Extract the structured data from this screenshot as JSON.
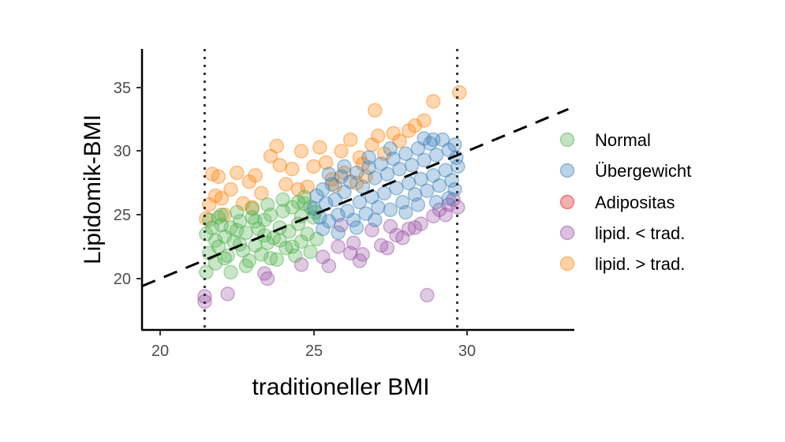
{
  "chart_data": {
    "type": "scatter",
    "title": "",
    "xlabel": "traditioneller BMI",
    "ylabel": "Lipidomik-BMI",
    "xlim": [
      19.41,
      33.5
    ],
    "ylim": [
      15.96,
      38.07
    ],
    "xticks": [
      20,
      25,
      30
    ],
    "yticks": [
      20,
      25,
      30,
      35
    ],
    "grid": false,
    "legend_position": "right",
    "reference_lines": {
      "identity_dashed": {
        "slope": 1,
        "intercept": 0,
        "style": "dashed"
      },
      "vertical_dotted": [
        21.45,
        29.68
      ]
    },
    "legend": [
      {
        "label": "Normal",
        "color": "#4daf4a"
      },
      {
        "label": "Übergewicht",
        "color": "#377eb8"
      },
      {
        "label": "Adipositas",
        "color": "#e41a1c"
      },
      {
        "label": "lipid. < trad.",
        "color": "#984ea3"
      },
      {
        "label": "lipid. > trad.",
        "color": "#ff7f00"
      }
    ],
    "series": [
      {
        "name": "Normal",
        "color": "#4daf4a",
        "points": [
          [
            21.5,
            23.5
          ],
          [
            21.6,
            22.0
          ],
          [
            21.5,
            20.5
          ],
          [
            21.7,
            24.0
          ],
          [
            21.8,
            23.0
          ],
          [
            21.9,
            22.5
          ],
          [
            22.0,
            24.2
          ],
          [
            22.1,
            23.3
          ],
          [
            22.2,
            21.8
          ],
          [
            22.3,
            20.5
          ],
          [
            22.4,
            22.9
          ],
          [
            22.5,
            23.8
          ],
          [
            22.6,
            24.5
          ],
          [
            22.7,
            22.2
          ],
          [
            22.8,
            23.6
          ],
          [
            22.9,
            21.4
          ],
          [
            23.0,
            24.8
          ],
          [
            23.1,
            22.6
          ],
          [
            23.2,
            23.9
          ],
          [
            23.3,
            21.9
          ],
          [
            23.4,
            24.6
          ],
          [
            23.5,
            22.8
          ],
          [
            23.6,
            25.0
          ],
          [
            23.7,
            23.2
          ],
          [
            23.8,
            21.5
          ],
          [
            23.9,
            24.0
          ],
          [
            24.0,
            25.3
          ],
          [
            24.1,
            22.4
          ],
          [
            24.2,
            23.7
          ],
          [
            24.3,
            25.6
          ],
          [
            24.4,
            21.8
          ],
          [
            24.5,
            24.3
          ],
          [
            24.6,
            22.9
          ],
          [
            24.7,
            25.9
          ],
          [
            24.8,
            23.5
          ],
          [
            24.9,
            22.1
          ],
          [
            25.0,
            24.8
          ],
          [
            25.1,
            23.1
          ],
          [
            24.5,
            26.0
          ],
          [
            24.0,
            26.2
          ],
          [
            23.5,
            25.8
          ],
          [
            23.0,
            25.5
          ],
          [
            22.5,
            25.2
          ],
          [
            22.0,
            25.0
          ],
          [
            21.6,
            24.6
          ],
          [
            22.3,
            24.0
          ],
          [
            23.1,
            24.5
          ],
          [
            23.9,
            23.0
          ],
          [
            24.6,
            24.9
          ],
          [
            24.9,
            25.6
          ],
          [
            22.8,
            21.0
          ],
          [
            23.6,
            21.6
          ],
          [
            24.3,
            22.5
          ],
          [
            21.8,
            21.2
          ],
          [
            22.1,
            21.6
          ],
          [
            24.7,
            26.4
          ],
          [
            25.05,
            25.2
          ],
          [
            23.4,
            23.4
          ],
          [
            22.6,
            22.7
          ],
          [
            21.9,
            24.8
          ]
        ]
      },
      {
        "name": "Übergewicht",
        "color": "#377eb8",
        "points": [
          [
            25.0,
            25.5
          ],
          [
            25.1,
            26.5
          ],
          [
            25.2,
            24.8
          ],
          [
            25.3,
            27.0
          ],
          [
            25.4,
            25.9
          ],
          [
            25.5,
            24.5
          ],
          [
            25.6,
            27.4
          ],
          [
            25.7,
            26.2
          ],
          [
            25.8,
            25.0
          ],
          [
            25.9,
            28.0
          ],
          [
            26.0,
            26.8
          ],
          [
            26.1,
            25.3
          ],
          [
            26.2,
            27.6
          ],
          [
            26.3,
            24.6
          ],
          [
            26.4,
            28.3
          ],
          [
            26.5,
            26.0
          ],
          [
            26.6,
            27.2
          ],
          [
            26.7,
            25.1
          ],
          [
            26.8,
            28.7
          ],
          [
            26.9,
            26.4
          ],
          [
            27.0,
            27.9
          ],
          [
            27.1,
            25.6
          ],
          [
            27.2,
            29.0
          ],
          [
            27.3,
            26.7
          ],
          [
            27.4,
            28.2
          ],
          [
            27.5,
            25.4
          ],
          [
            27.6,
            29.4
          ],
          [
            27.7,
            27.1
          ],
          [
            27.8,
            28.6
          ],
          [
            27.9,
            26.0
          ],
          [
            28.0,
            29.8
          ],
          [
            28.1,
            27.5
          ],
          [
            28.2,
            28.9
          ],
          [
            28.3,
            26.6
          ],
          [
            28.4,
            30.2
          ],
          [
            28.5,
            27.8
          ],
          [
            28.6,
            29.3
          ],
          [
            28.7,
            26.9
          ],
          [
            28.8,
            30.6
          ],
          [
            28.9,
            28.1
          ],
          [
            29.0,
            29.7
          ],
          [
            29.1,
            27.3
          ],
          [
            29.2,
            30.9
          ],
          [
            29.3,
            28.5
          ],
          [
            29.4,
            30.1
          ],
          [
            29.5,
            27.7
          ],
          [
            29.6,
            30.5
          ],
          [
            29.7,
            28.8
          ],
          [
            29.65,
            29.5
          ],
          [
            29.6,
            27.0
          ],
          [
            28.6,
            31.0
          ],
          [
            28.9,
            30.9
          ],
          [
            27.5,
            30.2
          ],
          [
            26.8,
            29.5
          ],
          [
            26.0,
            28.8
          ],
          [
            25.5,
            28.2
          ],
          [
            27.0,
            24.6
          ],
          [
            28.0,
            25.2
          ],
          [
            29.0,
            26.0
          ],
          [
            26.4,
            24.0
          ],
          [
            25.3,
            23.9
          ],
          [
            25.8,
            23.6
          ],
          [
            29.4,
            26.3
          ],
          [
            28.4,
            25.8
          ]
        ]
      },
      {
        "name": "lipid. < trad.",
        "color": "#984ea3",
        "points": [
          [
            21.45,
            18.2
          ],
          [
            21.45,
            18.6
          ],
          [
            22.2,
            18.8
          ],
          [
            23.5,
            20.0
          ],
          [
            23.4,
            20.4
          ],
          [
            24.6,
            21.1
          ],
          [
            25.3,
            21.7
          ],
          [
            25.5,
            21.0
          ],
          [
            25.8,
            22.5
          ],
          [
            26.2,
            22.0
          ],
          [
            26.6,
            21.9
          ],
          [
            26.5,
            21.4
          ],
          [
            27.2,
            22.6
          ],
          [
            27.4,
            22.4
          ],
          [
            27.7,
            23.4
          ],
          [
            27.9,
            23.2
          ],
          [
            28.3,
            24.0
          ],
          [
            28.5,
            24.3
          ],
          [
            28.9,
            24.9
          ],
          [
            29.1,
            25.4
          ],
          [
            29.4,
            25.8
          ],
          [
            29.55,
            26.2
          ],
          [
            29.7,
            25.6
          ],
          [
            28.7,
            18.7
          ],
          [
            26.9,
            23.8
          ],
          [
            28.1,
            23.9
          ],
          [
            25.9,
            24.2
          ],
          [
            27.5,
            24.1
          ],
          [
            29.3,
            25.0
          ],
          [
            26.3,
            22.8
          ]
        ]
      },
      {
        "name": "lipid. > trad.",
        "color": "#ff7f00",
        "points": [
          [
            21.5,
            24.7
          ],
          [
            21.6,
            25.8
          ],
          [
            21.7,
            28.2
          ],
          [
            21.9,
            28.0
          ],
          [
            22.0,
            26.3
          ],
          [
            22.3,
            27.0
          ],
          [
            22.5,
            28.3
          ],
          [
            22.7,
            25.9
          ],
          [
            22.9,
            27.6
          ],
          [
            23.1,
            28.1
          ],
          [
            23.3,
            26.7
          ],
          [
            23.6,
            29.6
          ],
          [
            23.8,
            30.4
          ],
          [
            23.9,
            28.9
          ],
          [
            24.1,
            27.4
          ],
          [
            24.3,
            28.6
          ],
          [
            24.6,
            30.0
          ],
          [
            24.8,
            27.2
          ],
          [
            25.0,
            28.8
          ],
          [
            25.2,
            30.3
          ],
          [
            25.4,
            29.1
          ],
          [
            25.7,
            27.3
          ],
          [
            25.9,
            30.0
          ],
          [
            26.0,
            28.3
          ],
          [
            26.2,
            30.9
          ],
          [
            26.4,
            27.5
          ],
          [
            26.5,
            29.5
          ],
          [
            26.7,
            28.0
          ],
          [
            26.9,
            30.5
          ],
          [
            27.1,
            31.2
          ],
          [
            27.3,
            29.8
          ],
          [
            27.6,
            31.4
          ],
          [
            27.8,
            30.8
          ],
          [
            28.1,
            31.6
          ],
          [
            28.3,
            32.0
          ],
          [
            28.6,
            32.4
          ],
          [
            28.9,
            33.9
          ],
          [
            27.0,
            33.2
          ],
          [
            29.75,
            34.6
          ],
          [
            22.1,
            25.0
          ],
          [
            21.8,
            26.5
          ],
          [
            23.0,
            25.6
          ],
          [
            24.5,
            27.0
          ],
          [
            25.6,
            27.8
          ],
          [
            26.6,
            29.0
          ]
        ]
      }
    ]
  },
  "legend_items": {
    "0": {
      "label": "Normal"
    },
    "1": {
      "label": "Übergewicht"
    },
    "2": {
      "label": "Adipositas"
    },
    "3": {
      "label": "lipid. < trad."
    },
    "4": {
      "label": "lipid. > trad."
    }
  },
  "axes": {
    "x_title": "traditioneller BMI",
    "y_title": "Lipidomik-BMI",
    "x_ticks": {
      "0": "20",
      "1": "25",
      "2": "30"
    },
    "y_ticks": {
      "0": "20",
      "1": "25",
      "2": "30",
      "3": "35"
    }
  }
}
